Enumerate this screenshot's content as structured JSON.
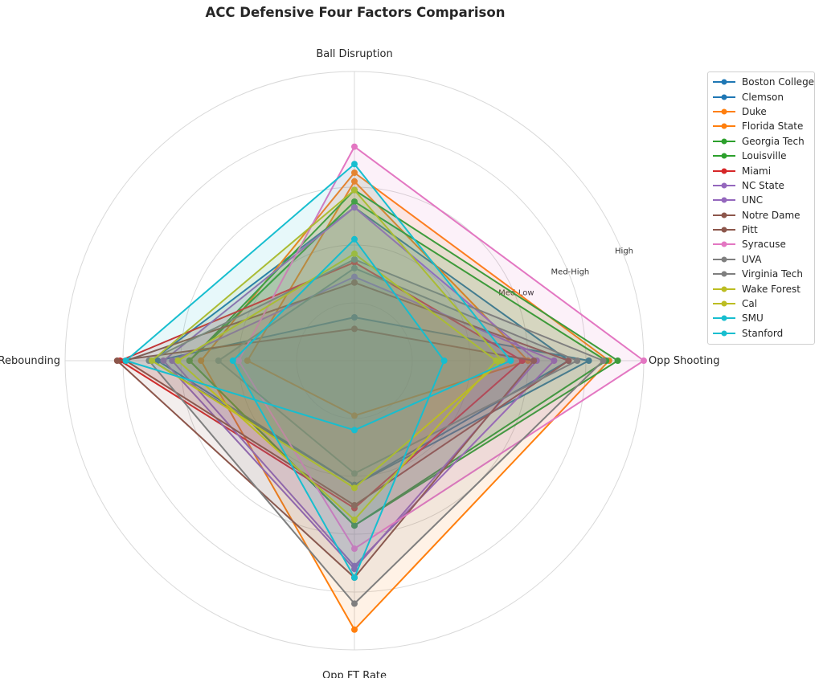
{
  "chart_data": {
    "type": "radar",
    "title": "ACC Defensive Four Factors Comparison",
    "axes": [
      "Ball Disruption",
      "Opp Shooting",
      "Opp FT Rate",
      "Def Rebounding"
    ],
    "rlim": [
      0,
      5
    ],
    "ring_labels": [
      {
        "value": 3,
        "label": "Med-Low"
      },
      {
        "value": 4,
        "label": "Med-High"
      },
      {
        "value": 5,
        "label": "High"
      }
    ],
    "grid": true,
    "legend_position": "right",
    "series": [
      {
        "name": "Boston College",
        "color": "#1f77b4",
        "values": [
          0.75,
          4.05,
          2.15,
          3.4
        ]
      },
      {
        "name": "Clemson",
        "color": "#1f77b4",
        "values": [
          2.65,
          3.7,
          2.15,
          3.5
        ]
      },
      {
        "name": "Duke",
        "color": "#ff7f0e",
        "values": [
          3.25,
          4.4,
          4.65,
          2.65
        ]
      },
      {
        "name": "Florida State",
        "color": "#ff7f0e",
        "values": [
          3.1,
          3.0,
          0.95,
          1.85
        ]
      },
      {
        "name": "Georgia Tech",
        "color": "#2ca02c",
        "values": [
          2.75,
          4.35,
          2.85,
          2.85
        ]
      },
      {
        "name": "Louisville",
        "color": "#2ca02c",
        "values": [
          2.95,
          4.55,
          2.85,
          2.85
        ]
      },
      {
        "name": "Miami",
        "color": "#d62728",
        "values": [
          1.7,
          2.9,
          2.55,
          4.05
        ]
      },
      {
        "name": "NC State",
        "color": "#9467bd",
        "values": [
          1.45,
          3.45,
          3.55,
          3.15
        ]
      },
      {
        "name": "UNC",
        "color": "#9467bd",
        "values": [
          2.65,
          3.15,
          3.6,
          3.3
        ]
      },
      {
        "name": "Notre Dame",
        "color": "#8c564b",
        "values": [
          1.35,
          3.7,
          2.5,
          3.95
        ]
      },
      {
        "name": "Pitt",
        "color": "#8c564b",
        "values": [
          0.55,
          3.1,
          3.75,
          4.1
        ]
      },
      {
        "name": "Syracuse",
        "color": "#e377c2",
        "values": [
          3.7,
          5.0,
          3.25,
          2.0
        ]
      },
      {
        "name": "UVA",
        "color": "#7f7f7f",
        "values": [
          1.75,
          4.3,
          4.2,
          3.55
        ]
      },
      {
        "name": "Virginia Tech",
        "color": "#7f7f7f",
        "values": [
          1.6,
          3.85,
          1.95,
          2.35
        ]
      },
      {
        "name": "Wake Forest",
        "color": "#bcbd22",
        "values": [
          2.95,
          2.55,
          2.2,
          3.5
        ]
      },
      {
        "name": "Cal",
        "color": "#bcbd22",
        "values": [
          1.85,
          2.45,
          2.75,
          3.05
        ]
      },
      {
        "name": "SMU",
        "color": "#17becf",
        "values": [
          2.1,
          1.55,
          3.75,
          2.1
        ]
      },
      {
        "name": "Stanford",
        "color": "#17becf",
        "values": [
          3.4,
          2.7,
          1.2,
          3.95
        ]
      }
    ]
  }
}
